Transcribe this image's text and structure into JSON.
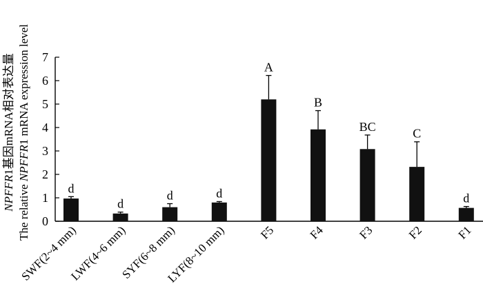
{
  "chart_data": {
    "type": "bar",
    "ylabel_line1_parts": [
      {
        "text": "NPFFR",
        "italic": true
      },
      {
        "text": "1基因mRNA相对表达量",
        "italic": false
      }
    ],
    "ylabel_line2_parts": [
      {
        "text": "The relative ",
        "italic": false
      },
      {
        "text": "NPFFR",
        "italic": true
      },
      {
        "text": "1 mRNA expression level",
        "italic": false
      }
    ],
    "xlabel": "",
    "ylim": [
      0,
      7
    ],
    "yticks": [
      0,
      1,
      2,
      3,
      4,
      5,
      6,
      7
    ],
    "grid": false,
    "categories": [
      "SWF(2~4 mm)",
      "LWF(4~6 mm)",
      "SYF(6~8 mm)",
      "LYF(8~10 mm)",
      "F5",
      "F4",
      "F3",
      "F2",
      "F1"
    ],
    "values": [
      0.97,
      0.33,
      0.6,
      0.8,
      5.2,
      3.92,
      3.08,
      2.32,
      0.57
    ],
    "errors": [
      0.08,
      0.06,
      0.15,
      0.04,
      1.02,
      0.8,
      0.6,
      1.07,
      0.06
    ],
    "significance": [
      "d",
      "d",
      "d",
      "d",
      "A",
      "B",
      "BC",
      "C",
      "d"
    ],
    "bar_color": "#111111"
  }
}
